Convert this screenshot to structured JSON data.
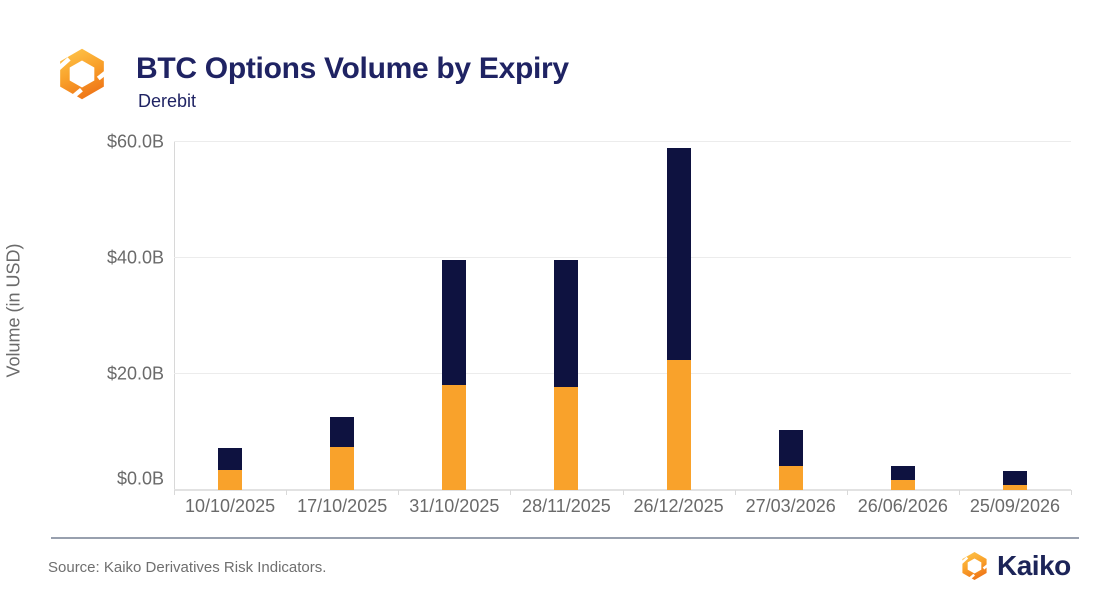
{
  "header": {
    "title": "BTC Options Volume by Expiry",
    "subtitle": "Derebit"
  },
  "chart_data": {
    "type": "bar",
    "stacked": true,
    "title": "BTC Options Volume by Expiry",
    "xlabel": "",
    "ylabel": "Volume (in USD)",
    "ylim": [
      0,
      60
    ],
    "grid": "horizontal",
    "legend": "none",
    "unit": "billions USD",
    "categories": [
      "10/10/2025",
      "17/10/2025",
      "31/10/2025",
      "28/11/2025",
      "26/12/2025",
      "27/03/2026",
      "26/06/2026",
      "25/09/2026"
    ],
    "series": [
      {
        "name": "bottom (orange)",
        "color": "#F9A22B",
        "values": [
          3.4,
          7.5,
          18.1,
          17.8,
          22.5,
          4.1,
          1.8,
          0.8
        ]
      },
      {
        "name": "top (navy)",
        "color": "#0E1240",
        "values": [
          3.8,
          5.1,
          21.6,
          21.9,
          36.5,
          6.3,
          2.4,
          2.4
        ]
      }
    ],
    "yticks": [
      {
        "value": 0,
        "label": "$0.0B"
      },
      {
        "value": 20,
        "label": "$20.0B"
      },
      {
        "value": 40,
        "label": "$40.0B"
      },
      {
        "value": 60,
        "label": "$60.0B"
      }
    ]
  },
  "footer": {
    "source": "Source: Kaiko Derivatives Risk Indicators.",
    "brand": "Kaiko"
  },
  "colors": {
    "bar_orange": "#F9A22B",
    "bar_navy": "#0E1240",
    "title_navy": "#1f2363",
    "axis_text": "#6a6a6a",
    "gridline": "#ececec",
    "logo_gradient_top": "#FFC94F",
    "logo_gradient_bottom": "#F07A1A"
  }
}
